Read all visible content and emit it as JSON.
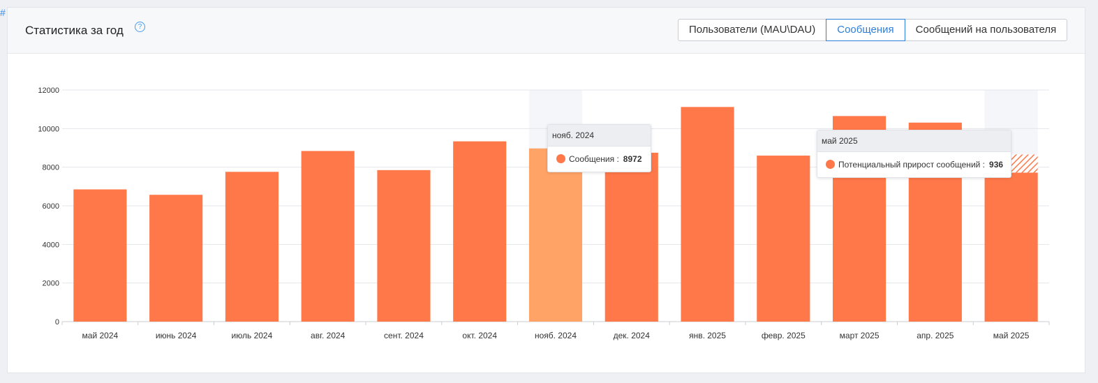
{
  "hash_mark": "#",
  "header": {
    "title": "Статистика за год",
    "help_symbol": "?"
  },
  "tabs": [
    {
      "label": "Пользователи (MAU\\DAU)",
      "active": false
    },
    {
      "label": "Сообщения",
      "active": true
    },
    {
      "label": "Сообщений на пользователя",
      "active": false
    }
  ],
  "colors": {
    "bar": "#ff7849",
    "bar_highlight": "#ffa366",
    "hatch": "#ff7849",
    "hover_band": "#f4f6fa",
    "accent": "#2f7fd8"
  },
  "chart_data": {
    "type": "bar",
    "categories": [
      "май 2024",
      "июнь 2024",
      "июль 2024",
      "авг. 2024",
      "сент. 2024",
      "окт. 2024",
      "нояб. 2024",
      "дек. 2024",
      "янв. 2025",
      "февр. 2025",
      "март 2025",
      "апр. 2025",
      "май 2025"
    ],
    "series": [
      {
        "name": "Сообщения",
        "values": [
          6850,
          6570,
          7760,
          8840,
          7850,
          9340,
          8972,
          8750,
          11120,
          8600,
          10650,
          10310,
          7720
        ]
      },
      {
        "name": "Потенциальный прирост сообщений",
        "values": [
          0,
          0,
          0,
          0,
          0,
          0,
          0,
          0,
          0,
          0,
          0,
          0,
          936
        ]
      }
    ],
    "yticks": [
      0,
      2000,
      4000,
      6000,
      8000,
      10000,
      12000
    ],
    "ylim": [
      0,
      12000
    ],
    "highlight_index": 6,
    "hover_band_indices": [
      6,
      12
    ],
    "grid": true,
    "legend": "none"
  },
  "tooltips": [
    {
      "header": "нояб. 2024",
      "label": "Сообщения :",
      "value": "8972"
    },
    {
      "header": "май 2025",
      "label": "Потенциальный прирост сообщений :",
      "value": "936"
    }
  ]
}
